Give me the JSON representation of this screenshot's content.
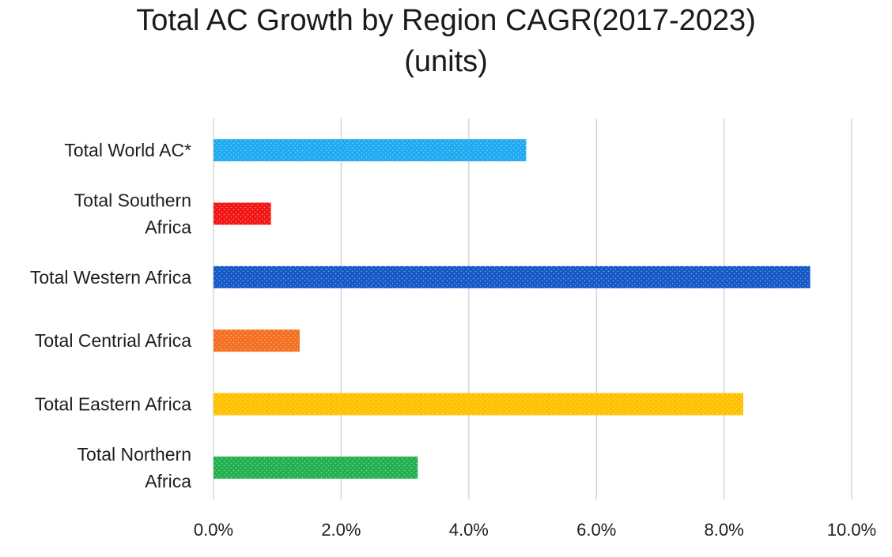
{
  "chart_data": {
    "type": "bar",
    "orientation": "horizontal",
    "title": "Total AC Growth by Region CAGR(2017-2023)",
    "subtitle": "(units)",
    "xlabel": "",
    "ylabel": "",
    "categories": [
      "Total World AC*",
      "Total Southern Africa",
      "Total Western Africa",
      "Total Centrial Africa",
      "Total Eastern Africa",
      "Total Northern Africa"
    ],
    "category_lines": [
      [
        "Total World AC*"
      ],
      [
        "Total Southern",
        "Africa"
      ],
      [
        "Total Western Africa"
      ],
      [
        "Total Centrial Africa"
      ],
      [
        "Total Eastern Africa"
      ],
      [
        "Total Northern",
        "Africa"
      ]
    ],
    "values": [
      4.9,
      0.9,
      9.35,
      1.35,
      8.3,
      3.2
    ],
    "value_unit": "%",
    "colors": [
      "#1eaaf1",
      "#f21515",
      "#1458c8",
      "#f37021",
      "#ffc000",
      "#22b04e"
    ],
    "xlim": [
      0,
      10
    ],
    "xticks": [
      0,
      2,
      4,
      6,
      8,
      10
    ],
    "xtick_labels": [
      "0.0%",
      "2.0%",
      "4.0%",
      "6.0%",
      "8.0%",
      "10.0%"
    ],
    "grid": true,
    "legend": "none"
  }
}
